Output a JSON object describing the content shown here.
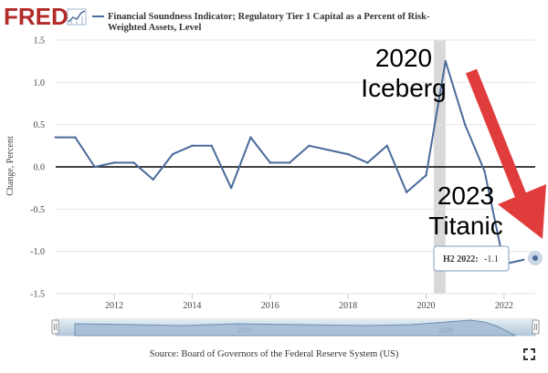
{
  "header": {
    "logo_text": "FRED",
    "legend_label_line1": "Financial Soundness Indicator; Regulatory Tier 1 Capital as a Percent of Risk-",
    "legend_label_line2": "Weighted Assets, Level"
  },
  "annotations": {
    "iceberg_year": "2020",
    "iceberg_word": "Iceberg",
    "titanic_year": "2023",
    "titanic_word": "Titanic"
  },
  "tooltip": {
    "label": "H2 2022:",
    "value": "-1.1"
  },
  "footer": {
    "source": "Source: Board of Governors of the Federal Reserve System (US)"
  },
  "navigator": {
    "labels": [
      "2015",
      "2020"
    ]
  },
  "colors": {
    "series": "#4a6a9b",
    "arrow": "#e03c3c",
    "recession": "#d9d9d9",
    "grid": "#e6e6e6",
    "fred_red": "#b22a2a"
  },
  "chart_data": {
    "type": "line",
    "title": "Financial Soundness Indicator; Regulatory Tier 1 Capital as a Percent of Risk-Weighted Assets, Level",
    "xlabel": "",
    "ylabel": "Change, Percent",
    "ylim": [
      -1.5,
      1.5
    ],
    "yticks": [
      1.5,
      1.0,
      0.5,
      0.0,
      -0.5,
      -1.0,
      -1.5
    ],
    "ytick_labels": [
      "1.5",
      "1.0",
      "0.5",
      "0.0",
      "-0.5",
      "-1.0",
      "-1.5"
    ],
    "xlim": [
      2010.5,
      2022.8
    ],
    "xticks": [
      2012,
      2014,
      2016,
      2018,
      2020,
      2022
    ],
    "xtick_labels": [
      "2012",
      "2014",
      "2016",
      "2018",
      "2020",
      "2022"
    ],
    "recession": [
      2020.2,
      2020.5
    ],
    "series": [
      {
        "name": "Financial Soundness Indicator; Regulatory Tier 1 Capital as a Percent of Risk-Weighted Assets, Level",
        "x": [
          2010.5,
          2011.0,
          2011.5,
          2012.0,
          2012.5,
          2013.0,
          2013.5,
          2014.0,
          2014.5,
          2015.0,
          2015.5,
          2016.0,
          2016.5,
          2017.0,
          2017.5,
          2018.0,
          2018.5,
          2019.0,
          2019.5,
          2020.0,
          2020.5,
          2021.0,
          2021.5,
          2022.0,
          2022.5
        ],
        "values": [
          0.35,
          0.35,
          0.0,
          0.05,
          0.05,
          -0.15,
          0.15,
          0.25,
          0.25,
          -0.25,
          0.35,
          0.05,
          0.05,
          0.25,
          0.2,
          0.15,
          0.05,
          0.25,
          -0.3,
          -0.1,
          1.25,
          0.5,
          -0.05,
          -1.15,
          -1.1
        ]
      }
    ]
  }
}
